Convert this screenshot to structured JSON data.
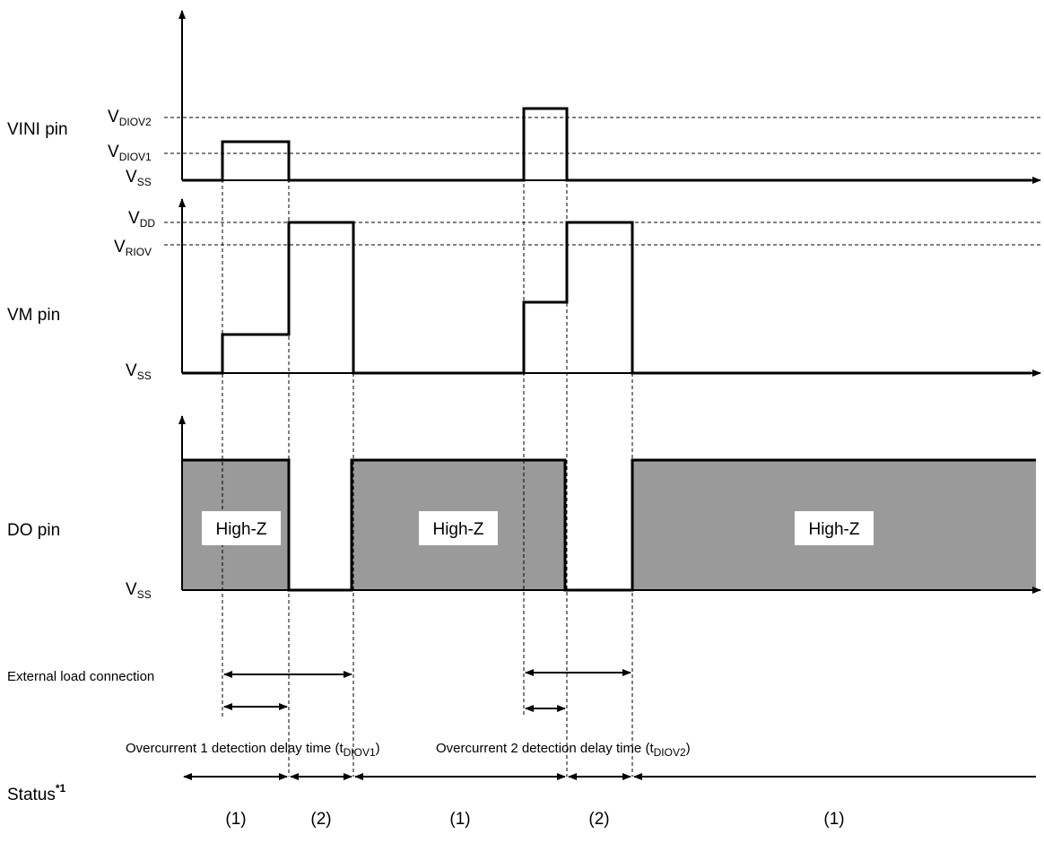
{
  "pins": {
    "vini": "VINI pin",
    "vm": "VM pin",
    "do": "DO pin",
    "status_main": "Status",
    "status_sup": "*1"
  },
  "levels": {
    "v": "V",
    "diov2": "DIOV2",
    "diov1": "DIOV1",
    "ss": "SS",
    "dd": "DD",
    "riov": "RIOV"
  },
  "highz": "High-Z",
  "annotations": {
    "ext_load": "External load connection",
    "oc1_main": "Overcurrent 1 detection delay time (t",
    "oc1_sub": "DIOV1",
    "oc2_main": "Overcurrent 2 detection delay time (t",
    "oc2_sub": "DIOV2",
    "close_paren": ")"
  },
  "status_labels": [
    "(1)",
    "(2)",
    "(1)",
    "(2)",
    "(1)"
  ],
  "colors": {
    "do_fill": "#9a9a9a",
    "line": "#000000"
  }
}
